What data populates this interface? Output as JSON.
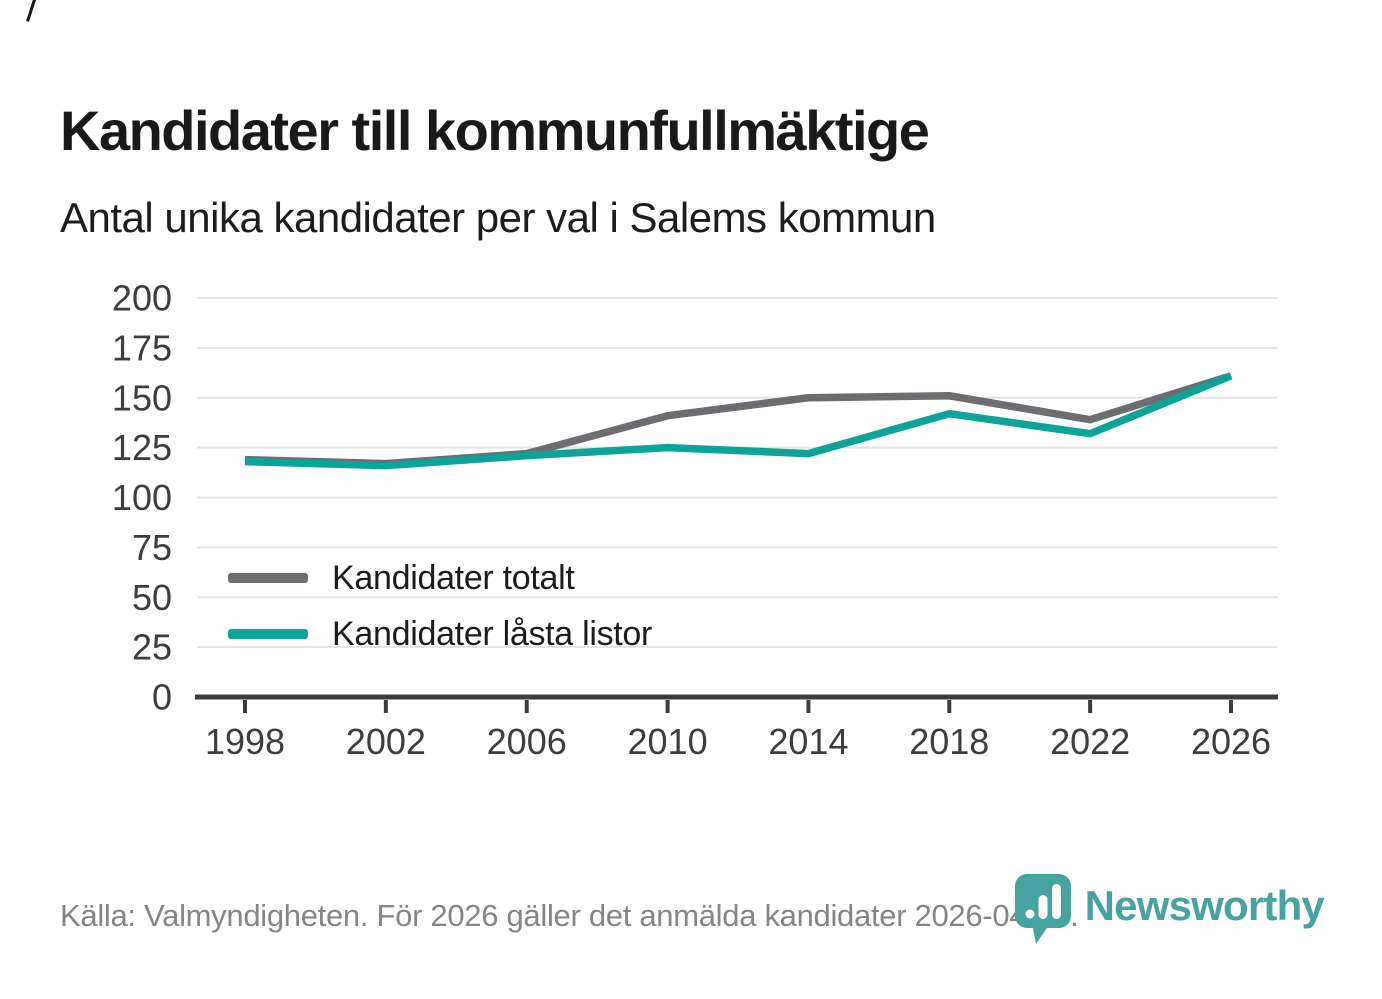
{
  "header": {
    "title": "Kandidater till kommunfullmäktige",
    "subtitle": "Antal unika kandidater per val i Salems kommun"
  },
  "chart_data": {
    "type": "line",
    "categories": [
      "1998",
      "2002",
      "2006",
      "2010",
      "2014",
      "2018",
      "2022",
      "2026"
    ],
    "series": [
      {
        "name": "Kandidater totalt",
        "color": "#6d6d71",
        "values": [
          119,
          117,
          122,
          141,
          150,
          151,
          139,
          161
        ]
      },
      {
        "name": "Kandidater låsta listor",
        "color": "#0ca39b",
        "values": [
          118,
          116,
          121,
          125,
          122,
          142,
          132,
          161
        ]
      }
    ],
    "title": "Kandidater till kommunfullmäktige",
    "subtitle": "Antal unika kandidater per val i Salems kommun",
    "xlabel": "",
    "ylabel": "",
    "ylim": [
      0,
      200
    ],
    "yticks": [
      0,
      25,
      50,
      75,
      100,
      125,
      150,
      175,
      200
    ],
    "grid": true,
    "legend_position": "inside bottom-left"
  },
  "footer": {
    "source_text": "Källa: Valmyndigheten. För 2026 gäller det anmälda kandidater 2026-04-10.",
    "brand": {
      "name": "Newsworthy",
      "color": "#45a4a2",
      "icon": "newsworthy-pin-barchart-icon"
    }
  },
  "colors": {
    "title_text": "#191919",
    "subtitle_text": "#1c1c1c",
    "axis_line": "#3c3c3c",
    "axis_label": "#3d3d3d",
    "gridline": "#e3e3e3",
    "legend_text": "#1b1b1b",
    "footer_text": "#858585",
    "background": "#ffffff"
  }
}
